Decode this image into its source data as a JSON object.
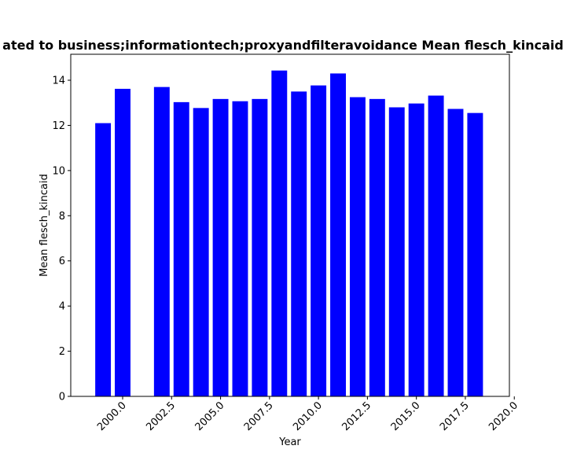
{
  "chart_data": {
    "type": "bar",
    "title": "ated to business;informationtech;proxyandfilteravoidance Mean flesch_kincaid",
    "xlabel": "Year",
    "ylabel": "Mean flesch_kincaid",
    "x": [
      1999,
      2000,
      2002,
      2003,
      2004,
      2005,
      2006,
      2007,
      2008,
      2009,
      2010,
      2011,
      2012,
      2013,
      2014,
      2015,
      2016,
      2017,
      2018
    ],
    "values": [
      12.1,
      13.62,
      13.7,
      13.03,
      12.77,
      13.17,
      13.07,
      13.17,
      14.43,
      13.5,
      13.77,
      14.3,
      13.25,
      13.17,
      12.8,
      12.97,
      13.32,
      12.73,
      12.55
    ],
    "xlim": [
      1997.35,
      2019.75
    ],
    "ylim": [
      0,
      15.15
    ],
    "xticks": [
      2000.0,
      2002.5,
      2005.0,
      2007.5,
      2010.0,
      2012.5,
      2015.0,
      2017.5,
      2020.0
    ],
    "xtick_labels": [
      "2000.0",
      "2002.5",
      "2005.0",
      "2007.5",
      "2010.0",
      "2012.5",
      "2015.0",
      "2017.5",
      "2020.0"
    ],
    "yticks": [
      0,
      2,
      4,
      6,
      8,
      10,
      12,
      14
    ],
    "ytick_labels": [
      "0",
      "2",
      "4",
      "6",
      "8",
      "10",
      "12",
      "14"
    ],
    "bar_color": "#0000ff",
    "bar_width": 0.8,
    "grid": false,
    "legend": "none"
  }
}
